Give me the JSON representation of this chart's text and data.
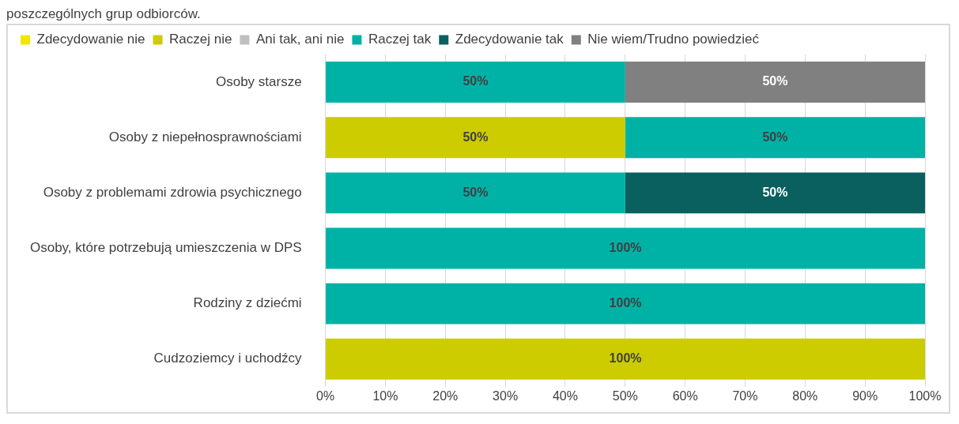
{
  "chart_data": {
    "type": "bar",
    "orientation": "horizontal",
    "stacked": true,
    "title": "poszczególnych grup odbiorców.",
    "categories": [
      "Osoby starsze",
      "Osoby z niepełnosprawnościami",
      "Osoby z problemami zdrowia psychicznego",
      "Osoby, które potrzebują umieszczenia w DPS",
      "Rodziny z dziećmi",
      "Cudzoziemcy i uchodźcy"
    ],
    "series": [
      {
        "name": "Zdecydowanie nie",
        "color": "#f2e600",
        "values": [
          null,
          null,
          null,
          null,
          null,
          null
        ],
        "value_labels": [
          null,
          null,
          null,
          null,
          null,
          null
        ]
      },
      {
        "name": "Raczej nie",
        "color": "#cccc00",
        "values": [
          null,
          50,
          null,
          null,
          null,
          100
        ],
        "value_labels": [
          null,
          "50%",
          null,
          null,
          null,
          "100%"
        ]
      },
      {
        "name": "Ani tak, ani nie",
        "color": "#bfbfbf",
        "values": [
          null,
          null,
          null,
          null,
          null,
          null
        ],
        "value_labels": [
          null,
          null,
          null,
          null,
          null,
          null
        ]
      },
      {
        "name": "Raczej tak",
        "color": "#00b2a6",
        "values": [
          50,
          50,
          50,
          100,
          100,
          null
        ],
        "value_labels": [
          "50%",
          "50%",
          "50%",
          "100%",
          "100%",
          null
        ]
      },
      {
        "name": "Zdecydowanie tak",
        "color": "#0a5f5f",
        "values": [
          null,
          null,
          50,
          null,
          null,
          null
        ],
        "value_labels": [
          null,
          null,
          "50%",
          null,
          null,
          null
        ]
      },
      {
        "name": "Nie wiem/Trudno powiedzieć",
        "color": "#808080",
        "values": [
          50,
          null,
          null,
          null,
          null,
          null
        ],
        "value_labels": [
          "50%",
          null,
          null,
          null,
          null,
          null
        ]
      }
    ],
    "xlim": [
      0,
      100
    ],
    "xticks": [
      {
        "value": 0,
        "label": "0%"
      },
      {
        "value": 10,
        "label": "10%"
      },
      {
        "value": 20,
        "label": "20%"
      },
      {
        "value": 30,
        "label": "30%"
      },
      {
        "value": 40,
        "label": "40%"
      },
      {
        "value": 50,
        "label": "50%"
      },
      {
        "value": 60,
        "label": "60%"
      },
      {
        "value": 70,
        "label": "70%"
      },
      {
        "value": 80,
        "label": "80%"
      },
      {
        "value": 90,
        "label": "90%"
      },
      {
        "value": 100,
        "label": "100%"
      }
    ],
    "grid": "x",
    "legend": "top"
  }
}
